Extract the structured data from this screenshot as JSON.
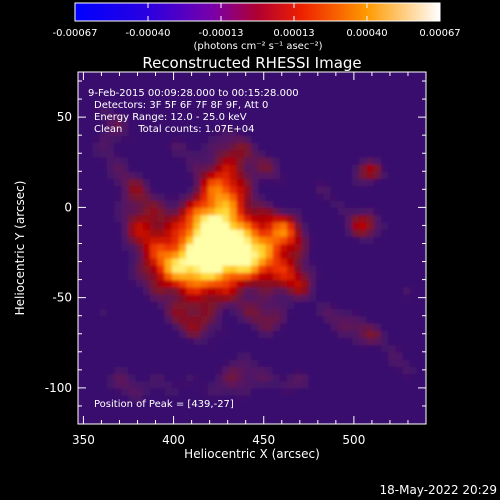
{
  "chart_data": {
    "type": "heatmap",
    "title": "Reconstructed RHESSI Image",
    "xlabel": "Heliocentric X (arcsec)",
    "ylabel": "Heliocentric Y (arcsec)",
    "xlim": [
      347,
      540
    ],
    "ylim": [
      -120,
      75
    ],
    "x_ticks": [
      350,
      400,
      450,
      500
    ],
    "y_ticks": [
      50,
      0,
      -50,
      -100
    ],
    "annotations": [
      "9-Feb-2015 00:09:28.000 to 00:15:28.000",
      "Detectors: 3F 5F 6F 7F 8F 9F, Att 0",
      "Energy Range: 12.0 - 25.0 keV",
      "Clean     Total counts: 1.07E+04"
    ],
    "peak_label": "Position of Peak = [439,-27]",
    "peak": [
      439,
      -27
    ],
    "colorbar": {
      "range": [
        -0.00067,
        0.00067
      ],
      "ticks": [
        "-0.00067",
        "-0.00040",
        "-0.00013",
        "0.00013",
        "0.00040",
        "0.00067"
      ],
      "unit": "(photons cm⁻² s⁻¹ asec⁻²)"
    },
    "grid": false
  },
  "footer": {
    "timestamp": "18-May-2022 20:29"
  }
}
